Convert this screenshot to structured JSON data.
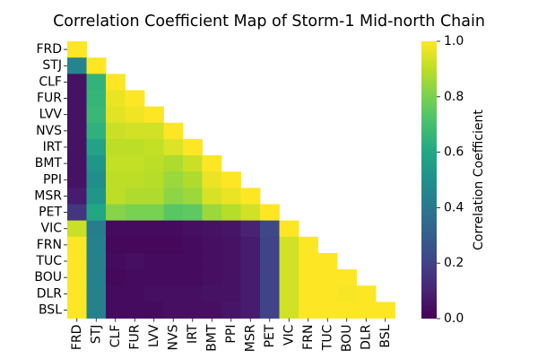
{
  "chart_data": {
    "type": "heatmap",
    "title": "Correlation Coefficient Map of Storm-1 Mid-north Chain",
    "colormap": "viridis",
    "mask": "upper-triangle",
    "labels": [
      "FRD",
      "STJ",
      "CLF",
      "FUR",
      "LVV",
      "NVS",
      "IRT",
      "BMT",
      "PPI",
      "MSR",
      "PET",
      "VIC",
      "FRN",
      "TUC",
      "BOU",
      "DLR",
      "BSL"
    ],
    "matrix": [
      [
        1.0
      ],
      [
        0.45,
        1.0
      ],
      [
        0.05,
        0.65,
        1.0
      ],
      [
        0.05,
        0.66,
        0.97,
        1.0
      ],
      [
        0.05,
        0.67,
        0.96,
        0.98,
        1.0
      ],
      [
        0.05,
        0.64,
        0.92,
        0.93,
        0.93,
        1.0
      ],
      [
        0.05,
        0.58,
        0.9,
        0.9,
        0.91,
        0.95,
        1.0
      ],
      [
        0.05,
        0.52,
        0.91,
        0.91,
        0.9,
        0.88,
        0.92,
        1.0
      ],
      [
        0.05,
        0.49,
        0.9,
        0.9,
        0.89,
        0.85,
        0.88,
        0.97,
        1.0
      ],
      [
        0.08,
        0.52,
        0.9,
        0.88,
        0.88,
        0.83,
        0.85,
        0.94,
        0.97,
        1.0
      ],
      [
        0.16,
        0.6,
        0.82,
        0.8,
        0.8,
        0.74,
        0.75,
        0.85,
        0.89,
        0.93,
        1.0
      ],
      [
        0.92,
        0.42,
        0.03,
        0.03,
        0.03,
        0.03,
        0.04,
        0.05,
        0.06,
        0.1,
        0.22,
        1.0
      ],
      [
        1.0,
        0.44,
        0.02,
        0.02,
        0.02,
        0.02,
        0.03,
        0.04,
        0.05,
        0.08,
        0.2,
        0.93,
        1.0
      ],
      [
        1.0,
        0.44,
        0.03,
        0.04,
        0.03,
        0.03,
        0.03,
        0.04,
        0.05,
        0.08,
        0.2,
        0.93,
        1.0,
        1.0
      ],
      [
        1.0,
        0.44,
        0.02,
        0.03,
        0.03,
        0.03,
        0.03,
        0.04,
        0.05,
        0.08,
        0.2,
        0.93,
        1.0,
        1.0,
        1.0
      ],
      [
        1.0,
        0.44,
        0.03,
        0.03,
        0.04,
        0.04,
        0.04,
        0.05,
        0.05,
        0.08,
        0.2,
        0.93,
        1.0,
        1.0,
        0.99,
        1.0
      ],
      [
        1.0,
        0.44,
        0.03,
        0.03,
        0.03,
        0.04,
        0.04,
        0.04,
        0.06,
        0.08,
        0.2,
        0.93,
        1.0,
        1.0,
        1.0,
        1.0,
        1.0
      ]
    ],
    "colorbar": {
      "label": "Correlation Coefficient",
      "range": [
        0.0,
        1.0
      ],
      "ticks": [
        "0.0",
        "0.2",
        "0.4",
        "0.6",
        "0.8",
        "1.0"
      ]
    }
  }
}
